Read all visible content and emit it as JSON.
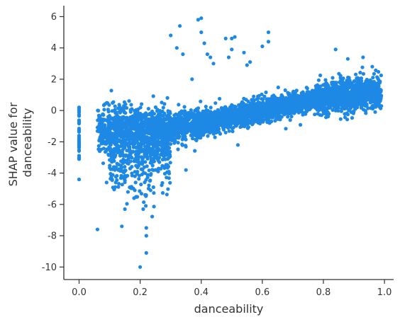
{
  "chart_data": {
    "type": "scatter",
    "title": "",
    "xlabel": "danceability",
    "ylabel_lines": [
      "SHAP value for",
      "danceability"
    ],
    "xlim": [
      -0.05,
      1.03
    ],
    "ylim": [
      -10.8,
      6.7
    ],
    "xticks": [
      0.0,
      0.2,
      0.4,
      0.6,
      0.8,
      1.0
    ],
    "xtick_labels": [
      "0.0",
      "0.2",
      "0.4",
      "0.6",
      "0.8",
      "1.0"
    ],
    "yticks": [
      -10,
      -8,
      -6,
      -4,
      -2,
      0,
      2,
      4,
      6
    ],
    "ytick_labels": [
      "-10",
      "-8",
      "-6",
      "-4",
      "-2",
      "0",
      "2",
      "4",
      "6"
    ],
    "grid": false,
    "point_color": "#1e88e5",
    "axis_color": "#333333",
    "x_range_dense": [
      0.06,
      0.99
    ],
    "trend": [
      {
        "x": 0.06,
        "y": -1.3
      },
      {
        "x": 0.15,
        "y": -1.3
      },
      {
        "x": 0.25,
        "y": -1.5
      },
      {
        "x": 0.33,
        "y": -1.0
      },
      {
        "x": 0.45,
        "y": -0.6
      },
      {
        "x": 0.6,
        "y": 0.0
      },
      {
        "x": 0.7,
        "y": 0.4
      },
      {
        "x": 0.8,
        "y": 0.8
      },
      {
        "x": 0.9,
        "y": 1.1
      },
      {
        "x": 0.99,
        "y": 1.2
      }
    ],
    "zero_cluster": {
      "x": 0.0,
      "y_min": -3.2,
      "y_max": 0.2
    },
    "series": [
      {
        "values": [
          {
            "x": 0.0,
            "y": 0.2
          },
          {
            "x": 0.0,
            "y": -4.4
          },
          {
            "x": 0.0,
            "y": -3.0
          },
          {
            "x": 0.06,
            "y": -7.6
          },
          {
            "x": 0.14,
            "y": -7.4
          },
          {
            "x": 0.2,
            "y": -10.0
          },
          {
            "x": 0.22,
            "y": -9.1
          },
          {
            "x": 0.22,
            "y": -8.0
          },
          {
            "x": 0.22,
            "y": -7.5
          },
          {
            "x": 0.21,
            "y": -6.3
          },
          {
            "x": 0.15,
            "y": -6.3
          },
          {
            "x": 0.18,
            "y": -5.6
          },
          {
            "x": 0.09,
            "y": -4.6
          },
          {
            "x": 0.12,
            "y": -4.6
          },
          {
            "x": 0.16,
            "y": -5.2
          },
          {
            "x": 0.3,
            "y": 4.8
          },
          {
            "x": 0.33,
            "y": 5.4
          },
          {
            "x": 0.32,
            "y": 4.0
          },
          {
            "x": 0.34,
            "y": 3.6
          },
          {
            "x": 0.39,
            "y": 5.8
          },
          {
            "x": 0.4,
            "y": 5.9
          },
          {
            "x": 0.4,
            "y": 5.0
          },
          {
            "x": 0.41,
            "y": 4.3
          },
          {
            "x": 0.42,
            "y": 3.6
          },
          {
            "x": 0.43,
            "y": 3.4
          },
          {
            "x": 0.44,
            "y": 3.0
          },
          {
            "x": 0.48,
            "y": 4.6
          },
          {
            "x": 0.5,
            "y": 4.6
          },
          {
            "x": 0.51,
            "y": 4.7
          },
          {
            "x": 0.5,
            "y": 3.9
          },
          {
            "x": 0.49,
            "y": 3.4
          },
          {
            "x": 0.54,
            "y": 3.7
          },
          {
            "x": 0.56,
            "y": 3.1
          },
          {
            "x": 0.55,
            "y": 2.9
          },
          {
            "x": 0.62,
            "y": 5.0
          },
          {
            "x": 0.62,
            "y": 4.4
          },
          {
            "x": 0.6,
            "y": 4.1
          },
          {
            "x": 0.37,
            "y": 2.0
          },
          {
            "x": 0.35,
            "y": -3.8
          },
          {
            "x": 0.52,
            "y": -2.2
          },
          {
            "x": 0.84,
            "y": 3.9
          },
          {
            "x": 0.88,
            "y": 3.3
          },
          {
            "x": 0.93,
            "y": 3.4
          },
          {
            "x": 0.96,
            "y": 2.8
          }
        ]
      }
    ]
  }
}
